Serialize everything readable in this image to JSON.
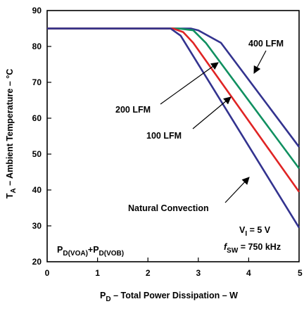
{
  "chart_data": {
    "type": "line",
    "title": "",
    "xlabel": {
      "main": "P",
      "sub": "D",
      "rest": " – Total Power Dissipation – W"
    },
    "ylabel": {
      "main": "T",
      "sub": "A",
      "rest": " – Ambient Temperature – °C"
    },
    "xlim": [
      0,
      5
    ],
    "ylim": [
      20,
      90
    ],
    "x_ticks": [
      "0",
      "1",
      "2",
      "3",
      "4",
      "5"
    ],
    "y_ticks": [
      "20",
      "30",
      "40",
      "50",
      "60",
      "70",
      "80",
      "90"
    ],
    "grid": false,
    "series": [
      {
        "name": "Natural Convection",
        "color": "#33338f",
        "points": [
          [
            0,
            85
          ],
          [
            2.45,
            85
          ],
          [
            2.65,
            83
          ],
          [
            5,
            29.5
          ]
        ]
      },
      {
        "name": "100 LFM",
        "color": "#e02424",
        "points": [
          [
            0,
            85
          ],
          [
            2.5,
            85
          ],
          [
            2.7,
            84
          ],
          [
            2.9,
            81
          ],
          [
            5,
            39.5
          ]
        ]
      },
      {
        "name": "200 LFM",
        "color": "#109060",
        "points": [
          [
            0,
            85
          ],
          [
            2.6,
            85
          ],
          [
            2.9,
            84.5
          ],
          [
            3.15,
            81
          ],
          [
            5,
            46
          ]
        ]
      },
      {
        "name": "400 LFM",
        "color": "#33338f",
        "points": [
          [
            0,
            85
          ],
          [
            2.85,
            85
          ],
          [
            3.0,
            84.5
          ],
          [
            3.45,
            81
          ],
          [
            5,
            52
          ]
        ]
      }
    ],
    "annotations": {
      "label_400": "400 LFM",
      "label_200": "200 LFM",
      "label_100": "100 LFM",
      "label_natural": "Natural Convection",
      "vi": {
        "main": "V",
        "sub": "I",
        "rest": " = 5 V"
      },
      "fsw": {
        "main": "f",
        "sub": "SW",
        "rest": " = 750 kHz"
      },
      "pd": {
        "p1": "P",
        "s1": "D(VOA)",
        "plus": "+P",
        "s2": "D(VOB)"
      }
    }
  }
}
